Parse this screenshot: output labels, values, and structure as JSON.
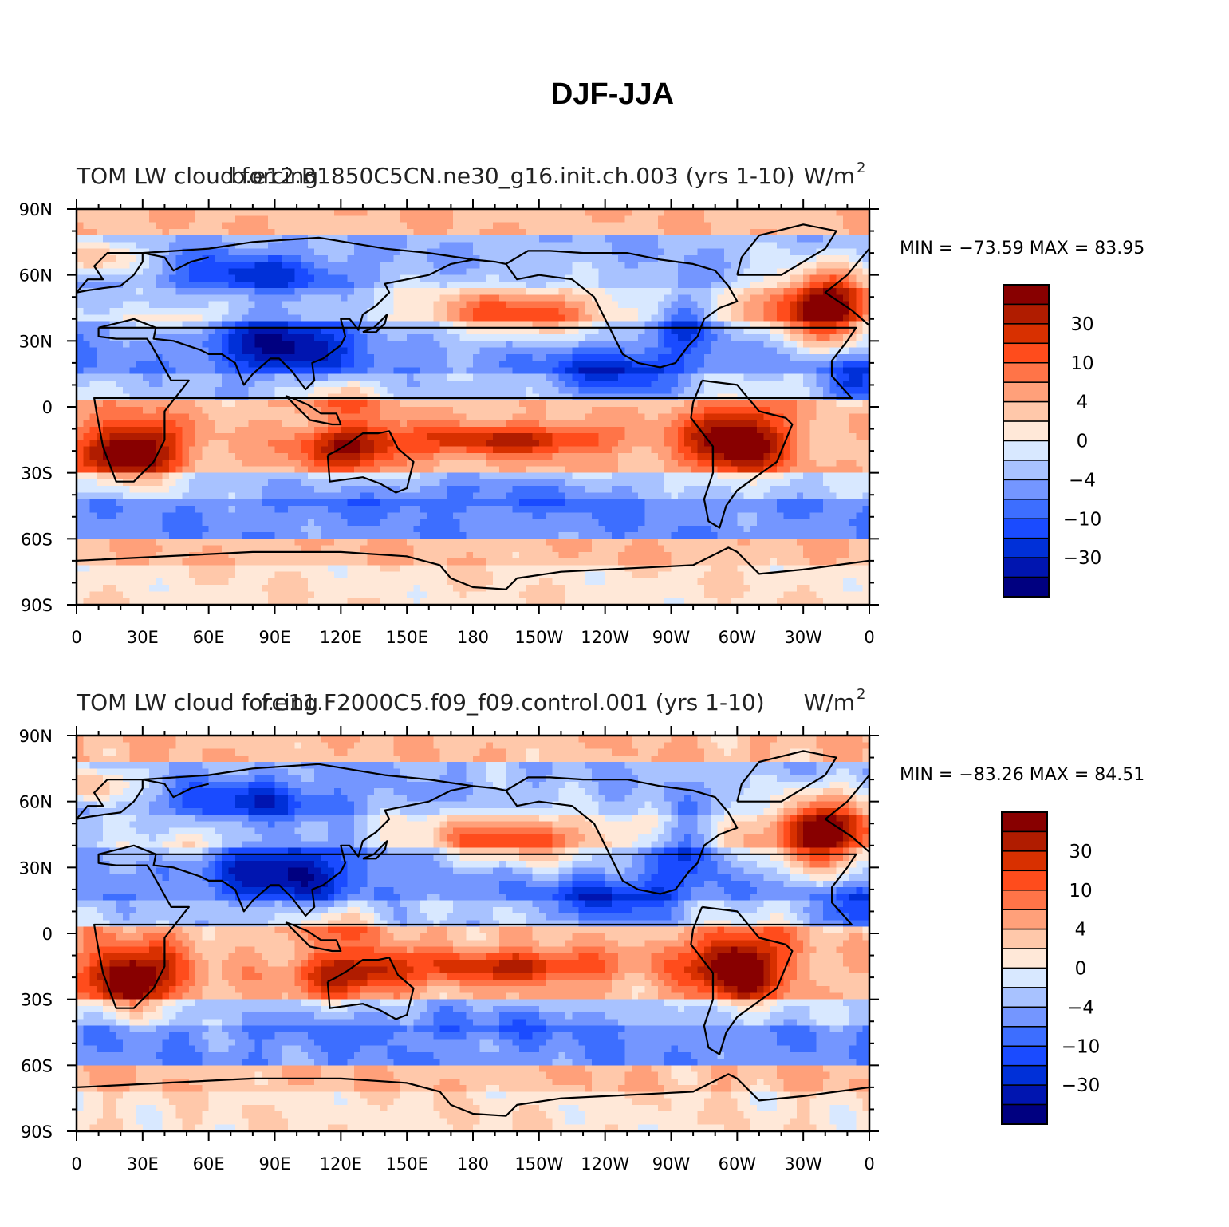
{
  "figure_title": "DJF-JJA",
  "colors": {
    "levels": [
      "#000080",
      "#0015b0",
      "#0030d8",
      "#1a4bff",
      "#3d6eff",
      "#7496ff",
      "#a8c2ff",
      "#d8e8ff",
      "#ffe8d8",
      "#ffc8aa",
      "#ffa07a",
      "#ff7448",
      "#ff4c1c",
      "#d83000",
      "#b01c00",
      "#880000"
    ],
    "coast": "#000000",
    "frame": "#000000"
  },
  "chart_data": [
    {
      "type": "heatmap",
      "left_title": "TOM LW cloud forcing",
      "center_title": "b.e12.B1850C5CN.ne30_g16.init.ch.003 (yrs 1-10)",
      "right_title": "W/m",
      "units_exponent": "2",
      "stats_text": "MIN = −73.59  MAX =   83.95",
      "min": -73.59,
      "max": 83.95,
      "x_ticks": [
        "0",
        "30E",
        "60E",
        "90E",
        "120E",
        "150E",
        "180",
        "150W",
        "120W",
        "90W",
        "60W",
        "30W",
        "0"
      ],
      "y_ticks": [
        "90N",
        "60N",
        "30N",
        "0",
        "30S",
        "60S",
        "90S"
      ],
      "xlim": [
        0,
        360
      ],
      "ylim": [
        -90,
        90
      ],
      "colorbar_labels": [
        "30",
        "10",
        "4",
        "0",
        "−4",
        "−10",
        "−30"
      ]
    },
    {
      "type": "heatmap",
      "left_title": "TOM LW cloud forcing",
      "center_title": "f.e11.F2000C5.f09_f09.control.001 (yrs 1-10)",
      "right_title": "W/m",
      "units_exponent": "2",
      "stats_text": "MIN = −83.26  MAX =   84.51",
      "min": -83.26,
      "max": 84.51,
      "x_ticks": [
        "0",
        "30E",
        "60E",
        "90E",
        "120E",
        "150E",
        "180",
        "150W",
        "120W",
        "90W",
        "60W",
        "30W",
        "0"
      ],
      "y_ticks": [
        "90N",
        "60N",
        "30N",
        "0",
        "30S",
        "60S",
        "90S"
      ],
      "xlim": [
        0,
        360
      ],
      "ylim": [
        -90,
        90
      ],
      "colorbar_labels": [
        "30",
        "10",
        "4",
        "0",
        "−4",
        "−10",
        "−30"
      ]
    }
  ]
}
